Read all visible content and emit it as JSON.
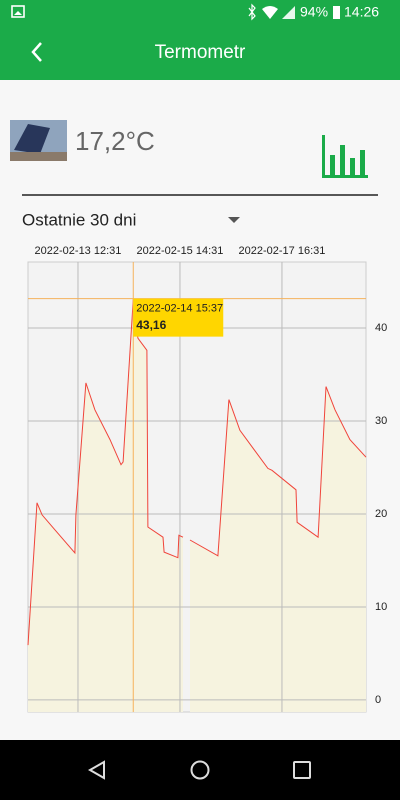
{
  "status_bar": {
    "battery": "94%",
    "time": "14:26"
  },
  "app_bar": {
    "title": "Termometr"
  },
  "sensor": {
    "temperature": "17,2°C"
  },
  "period": "Ostatnie 30 dni",
  "chart_data": {
    "type": "line",
    "x": [
      "2022-02-12 12:01",
      "2022-02-12 16:27",
      "2022-02-12 18:55",
      "2022-02-13 01:13",
      "2022-02-13 11:01",
      "2022-02-13 11:31",
      "2022-02-13 16:25",
      "2022-02-13 20:50",
      "2022-02-14 04:13",
      "2022-02-14 09:37",
      "2022-02-14 10:37",
      "2022-02-14 15:37",
      "2022-02-14 17:55",
      "2022-02-14 22:19",
      "2022-02-14 22:49",
      "2022-02-15 06:13",
      "2022-02-15 06:43",
      "2022-02-15 13:31",
      "2022-02-15 14:01",
      "2022-02-15 16:01",
      "2022-02-15 17:40",
      "2022-02-15 19:25",
      "2022-02-16 09:07",
      "2022-02-16 14:31",
      "2022-02-16 19:55",
      "2022-02-17 09:37",
      "2022-02-17 11:37",
      "2022-02-17 23:25",
      "2022-02-17 23:55",
      "2022-02-18 10:13",
      "2022-02-18 14:07",
      "2022-02-18 18:31",
      "2022-02-19 01:49",
      "2022-02-19 09:43"
    ],
    "values": [
      5.9,
      21.2,
      19.9,
      18.3,
      15.8,
      19.9,
      34.1,
      31.2,
      28,
      25.3,
      25.6,
      43.16,
      38.9,
      37.6,
      18.6,
      17.5,
      15.9,
      15.3,
      17.7,
      17.5,
      null,
      17.2,
      15.5,
      32.3,
      29,
      24.9,
      24.7,
      22.6,
      19.1,
      17.5,
      33.7,
      31.2,
      28,
      26.1
    ],
    "color": "#f0443a",
    "fill_color": "#f6f3df",
    "crosshair_color": "#f5b25c",
    "xlim": [
      "2022-02-12 12:01",
      "2022-02-19 09:43"
    ],
    "xticks": [
      "2022-02-13 12:31",
      "2022-02-15 14:31",
      "2022-02-17 16:31"
    ],
    "ylim": [
      -1.3,
      47.1
    ],
    "yticks": [
      0,
      10,
      20,
      30,
      40
    ],
    "grid": true,
    "tooltip": {
      "x": "2022-02-14 15:37",
      "value": 43.16,
      "label": "43,16"
    }
  }
}
